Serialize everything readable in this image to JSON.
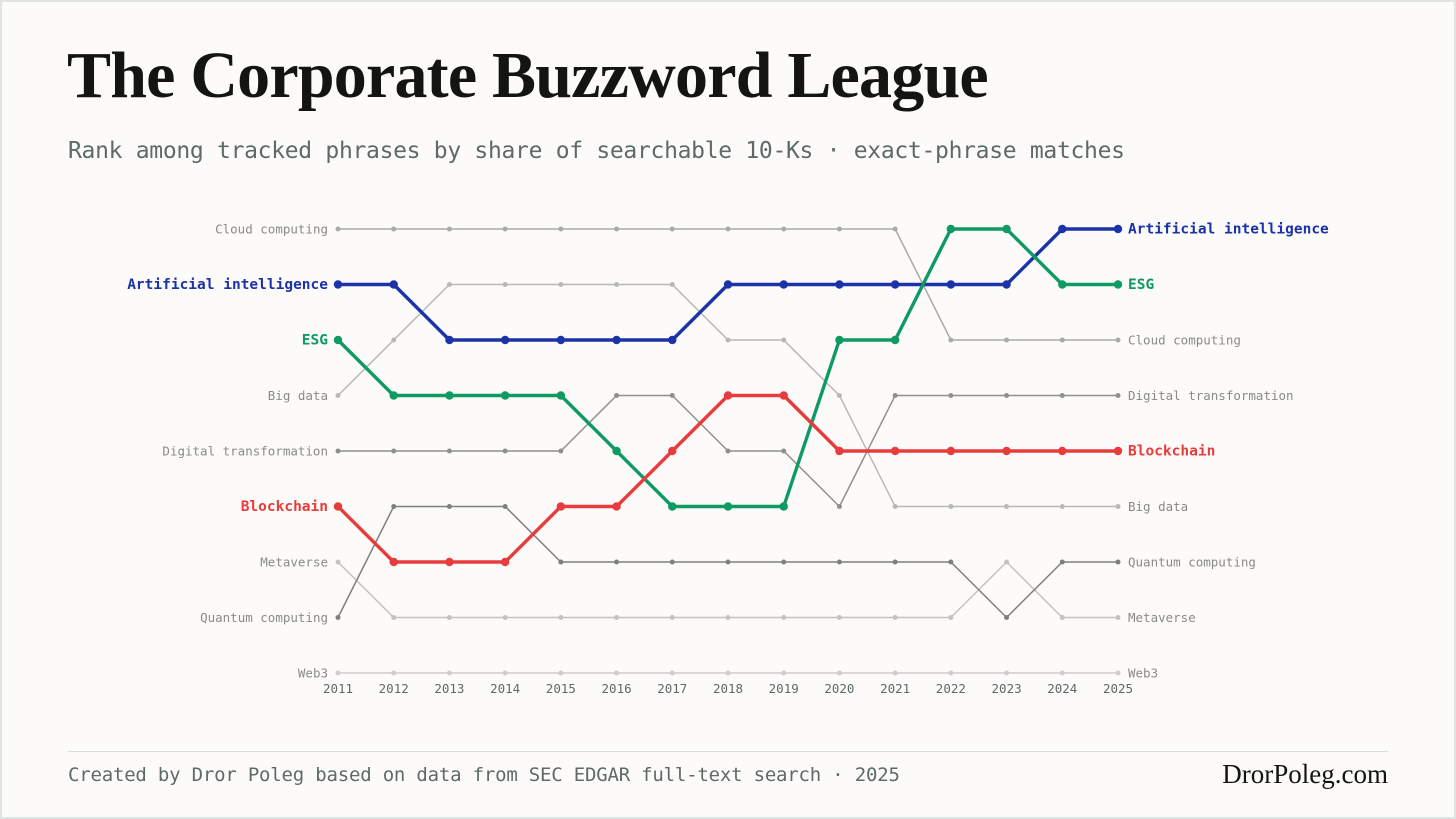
{
  "title": "The Corporate Buzzword League",
  "subtitle": "Rank among tracked phrases by share of searchable 10-Ks · exact-phrase matches",
  "footer": {
    "credit": "Created by Dror Poleg based on data from SEC EDGAR full-text search · 2025",
    "brand": "DrorPoleg.com"
  },
  "chart_data": {
    "type": "line",
    "subtype": "bump",
    "xlabel": "",
    "ylabel": "",
    "y_axis": "rank (1 = top), inverted",
    "ylim": [
      1,
      9
    ],
    "grid": false,
    "legend": "direct labels at left and right ends",
    "x": [
      "2011",
      "2012",
      "2013",
      "2014",
      "2015",
      "2016",
      "2017",
      "2018",
      "2019",
      "2020",
      "2021",
      "2022",
      "2023",
      "2024",
      "2025"
    ],
    "series": [
      {
        "name": "Artificial intelligence",
        "highlight": true,
        "color": "#1b33a6",
        "values": [
          2,
          2,
          3,
          3,
          3,
          3,
          3,
          2,
          2,
          2,
          2,
          2,
          2,
          1,
          1
        ]
      },
      {
        "name": "ESG",
        "highlight": true,
        "color": "#0e9a62",
        "values": [
          3,
          4,
          4,
          4,
          4,
          5,
          6,
          6,
          6,
          3,
          3,
          1,
          1,
          2,
          2
        ]
      },
      {
        "name": "Blockchain",
        "highlight": true,
        "color": "#e83c3c",
        "values": [
          6,
          7,
          7,
          7,
          6,
          6,
          5,
          4,
          4,
          5,
          5,
          5,
          5,
          5,
          5
        ]
      },
      {
        "name": "Cloud computing",
        "highlight": false,
        "color": "#aaaaaa",
        "values": [
          1,
          1,
          1,
          1,
          1,
          1,
          1,
          1,
          1,
          1,
          1,
          3,
          3,
          3,
          3
        ]
      },
      {
        "name": "Big data",
        "highlight": false,
        "color": "#b8b8b4",
        "values": [
          4,
          3,
          2,
          2,
          2,
          2,
          2,
          3,
          3,
          4,
          6,
          6,
          6,
          6,
          6
        ]
      },
      {
        "name": "Digital transformation",
        "highlight": false,
        "color": "#8f8f8b",
        "values": [
          5,
          5,
          5,
          5,
          5,
          4,
          4,
          5,
          5,
          6,
          4,
          4,
          4,
          4,
          4
        ]
      },
      {
        "name": "Metaverse",
        "highlight": false,
        "color": "#c2c2be",
        "values": [
          7,
          8,
          8,
          8,
          8,
          8,
          8,
          8,
          8,
          8,
          8,
          8,
          7,
          8,
          8
        ]
      },
      {
        "name": "Quantum computing",
        "highlight": false,
        "color": "#7f7f7b",
        "values": [
          8,
          6,
          6,
          6,
          7,
          7,
          7,
          7,
          7,
          7,
          7,
          7,
          8,
          7,
          7
        ]
      },
      {
        "name": "Web3",
        "highlight": false,
        "color": "#cdcdc9",
        "values": [
          9,
          9,
          9,
          9,
          9,
          9,
          9,
          9,
          9,
          9,
          9,
          9,
          9,
          9,
          9
        ]
      }
    ]
  }
}
